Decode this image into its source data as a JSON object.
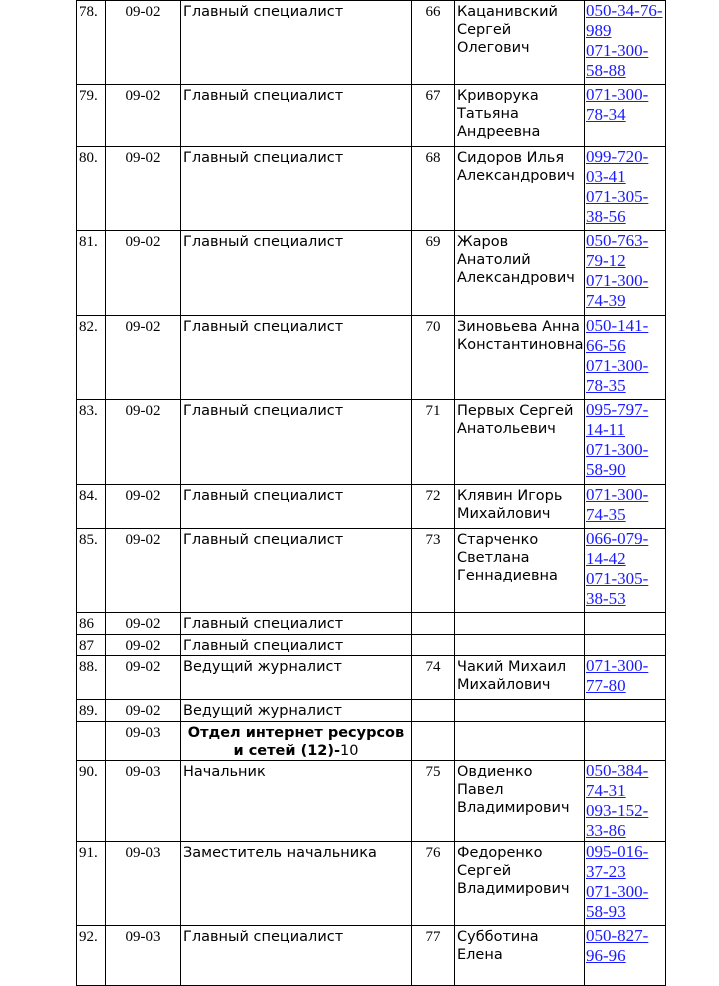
{
  "table": {
    "rows": [
      {
        "num": "78.",
        "code": "09-02",
        "position": "Главный специалист",
        "room": "66",
        "name": "Кацанивский Сергей Олегович",
        "phones": [
          "050-34-76-989",
          "071-300-58-88"
        ]
      },
      {
        "num": "79.",
        "code": "09-02",
        "position": "Главный специалист",
        "room": "67",
        "name": "Криворука Татьяна Андреевна",
        "phones": [
          "071-300-78-34"
        ]
      },
      {
        "num": "80.",
        "code": "09-02",
        "position": "Главный специалист",
        "room": "68",
        "name": "Сидоров Илья Александрович",
        "phones": [
          "099-720-03-41",
          "071-305-38-56"
        ]
      },
      {
        "num": "81.",
        "code": "09-02",
        "position": "Главный специалист",
        "room": "69",
        "name": "Жаров Анатолий Александрович",
        "phones": [
          "050-763-79-12",
          "071-300-74-39"
        ]
      },
      {
        "num": "82.",
        "code": "09-02",
        "position": "Главный специалист",
        "room": "70",
        "name": "Зиновьева Анна Константиновна",
        "phones": [
          "050-141-66-56",
          "071-300-78-35"
        ]
      },
      {
        "num": "83.",
        "code": "09-02",
        "position": "Главный специалист",
        "room": "71",
        "name": "Первых Сергей Анатольевич",
        "phones": [
          "095-797-14-11",
          "071-300-58-90"
        ]
      },
      {
        "num": "84.",
        "code": "09-02",
        "position": "Главный специалист",
        "room": "72",
        "name": "Клявин Игорь Михайлович",
        "phones": [
          "071-300-74-35"
        ]
      },
      {
        "num": "85.",
        "code": "09-02",
        "position": "Главный специалист",
        "room": "73",
        "name": "Старченко Светлана Геннадиевна",
        "phones": [
          "066-079-14-42",
          "071-305-38-53"
        ]
      },
      {
        "num": "86",
        "code": "09-02",
        "position": "Главный специалист"
      },
      {
        "num": "87",
        "code": "09-02",
        "position": "Главный специалист"
      },
      {
        "num": "88.",
        "code": "09-02",
        "position": "Ведущий журналист",
        "room": "74",
        "name": "Чакий Михаил Михайлович",
        "phones": [
          "071-300-77-80"
        ]
      },
      {
        "num": "89.",
        "code": "09-02",
        "position": "Ведущий журналист"
      },
      {
        "code": "09-03",
        "heading": "Отдел интернет ресурсов и сетей (12)-",
        "count": "10"
      },
      {
        "num": "90.",
        "code": "09-03",
        "position": "Начальник",
        "room": "75",
        "name": "Овдиенко Павел Владимирович",
        "phones": [
          "050-384-74-31",
          "093-152-33-86"
        ]
      },
      {
        "num": "91.",
        "code": "09-03",
        "position": "Заместитель начальника",
        "room": "76",
        "name": "Федоренко Сергей Владимирович",
        "phones": [
          "095-016-37-23",
          "071-300-58-93"
        ]
      },
      {
        "num": "92.",
        "code": "09-03",
        "position": "Главный специалист",
        "room": "77",
        "name": "Субботина Елена",
        "phones": [
          "050-827-96-96"
        ]
      }
    ]
  }
}
